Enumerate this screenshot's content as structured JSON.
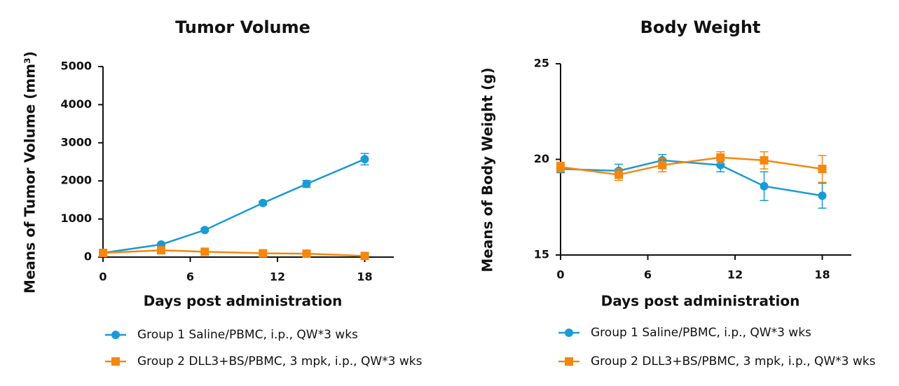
{
  "chart_data": [
    {
      "type": "line",
      "title": "Tumor Volume",
      "x_label": "Days post administration",
      "y_label": "Means of Tumor Volume (mm³)",
      "xlim": [
        0,
        20
      ],
      "xticks": [
        0,
        6,
        12,
        18
      ],
      "ylim": [
        0,
        5000
      ],
      "yticks": [
        0,
        1000,
        2000,
        3000,
        4000,
        5000
      ],
      "x": [
        0,
        4,
        7,
        11,
        14,
        18
      ],
      "series": [
        {
          "name": "Group 1 Saline/PBMC, i.p., QW*3 wks",
          "color": "#1a9ad6",
          "marker": "circle",
          "values": [
            110,
            330,
            710,
            1420,
            1920,
            2570
          ],
          "errors": [
            20,
            30,
            40,
            50,
            90,
            150
          ]
        },
        {
          "name": "Group 2 DLL3+BS/PBMC, 3 mpk, i.p., QW*3 wks",
          "color": "#f5870f",
          "marker": "square",
          "values": [
            110,
            180,
            140,
            100,
            90,
            30
          ],
          "errors": [
            20,
            20,
            20,
            20,
            20,
            20
          ]
        }
      ]
    },
    {
      "type": "line",
      "title": "Body Weight",
      "x_label": "Days post administration",
      "y_label": "Means of Body Weight (g)",
      "xlim": [
        0,
        20
      ],
      "xticks": [
        0,
        6,
        12,
        18
      ],
      "ylim": [
        15,
        25
      ],
      "yticks": [
        15,
        20,
        25
      ],
      "x": [
        0,
        4,
        7,
        11,
        14,
        18
      ],
      "series": [
        {
          "name": "Group 1 Saline/PBMC, i.p., QW*3 wks",
          "color": "#1a9ad6",
          "marker": "circle",
          "values": [
            19.5,
            19.4,
            19.95,
            19.7,
            18.6,
            18.1
          ],
          "errors": [
            0.2,
            0.35,
            0.3,
            0.35,
            0.75,
            0.65
          ]
        },
        {
          "name": "Group 2 DLL3+BS/PBMC, 3 mpk, i.p., QW*3 wks",
          "color": "#f5870f",
          "marker": "square",
          "values": [
            19.6,
            19.2,
            19.7,
            20.1,
            19.95,
            19.5
          ],
          "errors": [
            0.25,
            0.3,
            0.35,
            0.3,
            0.45,
            0.7
          ]
        }
      ]
    }
  ]
}
